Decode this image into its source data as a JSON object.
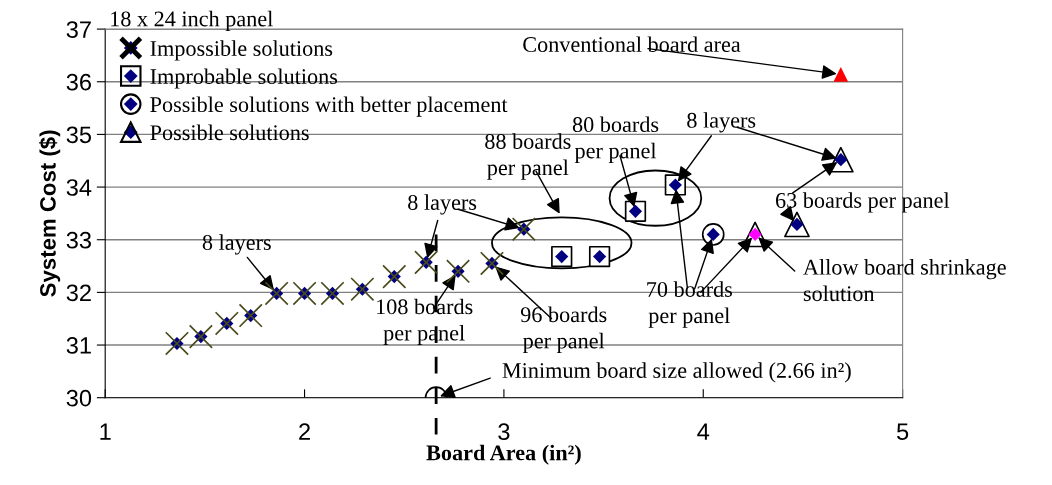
{
  "chart_data": {
    "type": "scatter",
    "title": "18 x 24 inch panel",
    "xlabel": "Board Area (in²)",
    "ylabel": "System Cost ($)",
    "xlim": [
      1,
      5
    ],
    "ylim": [
      30,
      37
    ],
    "xticks": [
      1,
      2,
      3,
      4,
      5
    ],
    "yticks": [
      30,
      31,
      32,
      33,
      34,
      35,
      36,
      37
    ],
    "grid": "y",
    "legend": "top left",
    "series": [
      {
        "name": "Impossible solutions",
        "color": "#000080",
        "marker": "diamond",
        "x": [
          1.36,
          1.48,
          1.61,
          1.73,
          1.86,
          2.0,
          2.14,
          2.29,
          2.45,
          2.61,
          2.77,
          2.94,
          3.1
        ],
        "values": [
          31.03,
          31.16,
          31.41,
          31.56,
          31.98,
          31.98,
          31.98,
          32.06,
          32.3,
          32.57,
          32.4,
          32.55,
          33.2
        ]
      },
      {
        "name": "Improbable solutions",
        "color": "#000080",
        "marker": "diamond",
        "x": [
          3.29,
          3.48,
          3.66,
          3.86
        ],
        "values": [
          32.68,
          32.68,
          33.54,
          34.04
        ]
      },
      {
        "name": "Possible solutions with better placement",
        "color": "#000080",
        "marker": "diamond",
        "x": [
          4.05
        ],
        "values": [
          33.1
        ]
      },
      {
        "name": "Possible solutions",
        "color": "#000080",
        "marker": "diamond",
        "x": [
          4.47,
          4.69
        ],
        "values": [
          33.29,
          34.52
        ]
      },
      {
        "color": "#ff00ff",
        "marker": "diamond",
        "x": [
          4.26
        ],
        "values": [
          33.1
        ]
      },
      {
        "color": "#ff0000",
        "marker": "triangle",
        "x": [
          4.69
        ],
        "values": [
          36.14
        ]
      },
      {
        "color": null,
        "marker": "circle",
        "x": [
          2.66
        ],
        "values": [
          30.0
        ]
      }
    ],
    "ref_lines": [
      {
        "axis": "x",
        "value": 2.66,
        "line_style": "dashed",
        "color": "#000000"
      }
    ],
    "annotations": [
      {
        "text": "8 layers",
        "x": 1.86,
        "y": 31.98
      },
      {
        "text": "108 boards\nper panel",
        "x": 2.77,
        "y": 32.4
      },
      {
        "text": "8 layers",
        "x": 3.1,
        "y": 33.2
      },
      "88 boards\nper panel",
      {
        "text": "96 boards\nper panel",
        "x": 2.94,
        "y": 32.55
      },
      {
        "text": "80 boards\nper panel",
        "x": 3.66,
        "y": 33.54
      },
      {
        "text": "8 layers",
        "x": 3.86,
        "y": 34.04
      },
      {
        "text": "70 boards\nper panel",
        "x": 4.05,
        "y": 33.1
      },
      {
        "text": "Allow board shrinkage\nsolution",
        "x": 4.26,
        "y": 33.1
      },
      {
        "text": "63 boards per panel",
        "x": 4.47,
        "y": 33.29
      },
      {
        "text": "Conventional board area",
        "x": 4.69,
        "y": 36.14
      },
      {
        "text": "Minimum board size allowed (2.66 in²)",
        "x": 2.66,
        "y": 30.0
      }
    ]
  }
}
